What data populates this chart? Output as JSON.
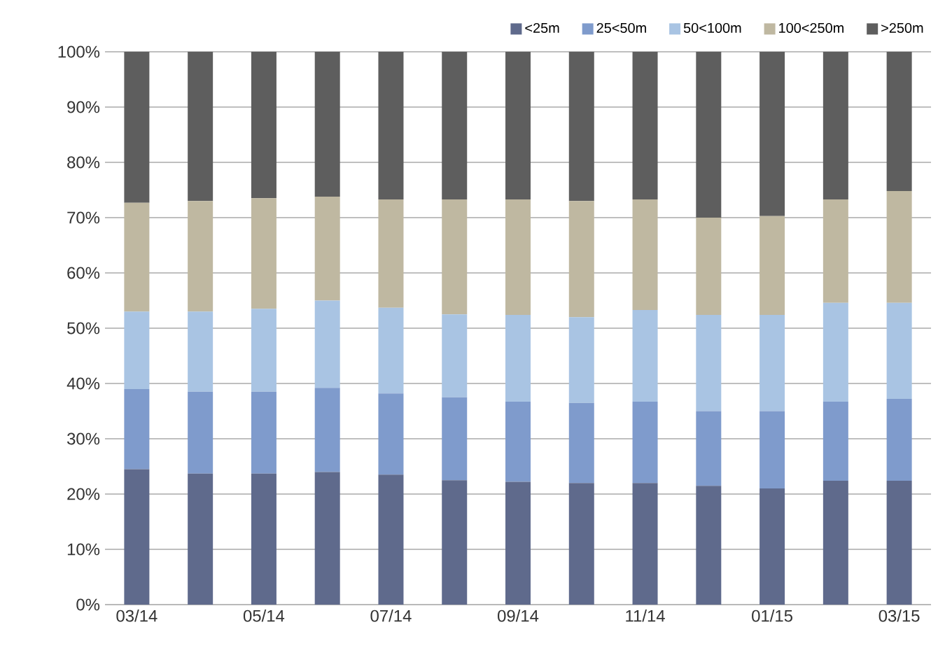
{
  "chart_data": {
    "type": "bar",
    "stacked": true,
    "categories": [
      "03/14",
      null,
      "05/14",
      null,
      "07/14",
      null,
      "09/14",
      null,
      "11/14",
      null,
      "01/15",
      null,
      "03/15"
    ],
    "series": [
      {
        "name": "<25m",
        "color": "#5f6a8c",
        "values": [
          24.5,
          23.7,
          23.7,
          24,
          23.5,
          22.5,
          22.2,
          22,
          22,
          21.5,
          21,
          22.4,
          22.4
        ]
      },
      {
        "name": "25<50m",
        "color": "#7f9bcc",
        "values": [
          14.5,
          14.8,
          14.8,
          15.2,
          14.7,
          15,
          14.5,
          14.5,
          14.7,
          13.5,
          14,
          14.3,
          14.8
        ]
      },
      {
        "name": "50<100m",
        "color": "#a9c4e3",
        "values": [
          14,
          14.5,
          15,
          15.8,
          15.5,
          15,
          15.7,
          15.5,
          16.6,
          17.4,
          17.4,
          17.9,
          17.4
        ]
      },
      {
        "name": "100<250m",
        "color": "#bfb8a1",
        "values": [
          19.7,
          20,
          20,
          18.8,
          19.6,
          20.8,
          20.9,
          21,
          20,
          17.6,
          17.9,
          18.7,
          20.2
        ]
      },
      {
        "name": ">250m",
        "color": "#5e5e5e",
        "values": [
          27.3,
          27,
          26.5,
          26.2,
          26.7,
          26.7,
          26.7,
          27,
          26.7,
          30,
          29.7,
          26.7,
          25.2
        ]
      }
    ],
    "ylim": [
      0,
      100
    ],
    "yticks": [
      {
        "value": 0,
        "label": "0%"
      },
      {
        "value": 10,
        "label": "10%"
      },
      {
        "value": 20,
        "label": "20%"
      },
      {
        "value": 30,
        "label": "30%"
      },
      {
        "value": 40,
        "label": "40%"
      },
      {
        "value": 50,
        "label": "50%"
      },
      {
        "value": 60,
        "label": "60%"
      },
      {
        "value": 70,
        "label": "70%"
      },
      {
        "value": 80,
        "label": "80%"
      },
      {
        "value": 90,
        "label": "90%"
      },
      {
        "value": 100,
        "label": "100%"
      }
    ],
    "grid": "y",
    "legend": "top right"
  }
}
